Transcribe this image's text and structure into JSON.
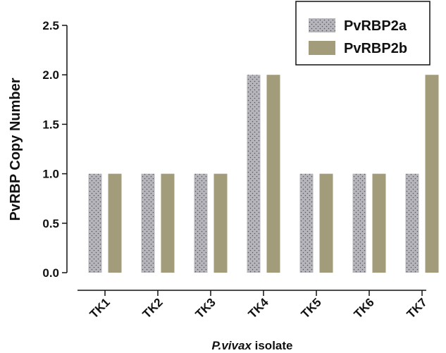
{
  "chart_data": {
    "type": "bar",
    "categories": [
      "TK1",
      "TK2",
      "TK3",
      "TK4",
      "TK5",
      "TK6",
      "TK7"
    ],
    "series": [
      {
        "name": "PvRBP2a",
        "values": [
          1,
          1,
          1,
          2,
          1,
          1,
          1
        ],
        "color": "#b5b5bb",
        "pattern": "dotted"
      },
      {
        "name": "PvRBP2b",
        "values": [
          1,
          1,
          1,
          2,
          1,
          1,
          2
        ],
        "color": "#a39c7a",
        "pattern": "solid"
      }
    ],
    "xlabel_italic": "P.vivax",
    "xlabel_rest": " isolate",
    "ylabel": "PvRBP Copy Number",
    "ylim": [
      0,
      2.5
    ],
    "yticks": [
      "0.0",
      "0.5",
      "1.0",
      "1.5",
      "2.0",
      "2.5"
    ],
    "grid": false,
    "legend_position": "top-right"
  }
}
